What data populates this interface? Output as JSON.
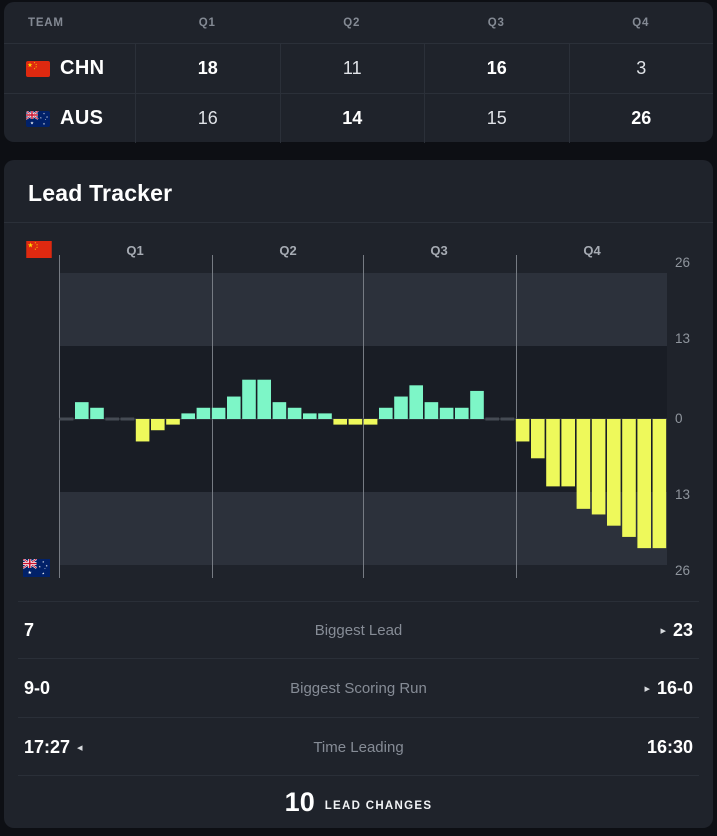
{
  "score_table": {
    "header": {
      "team": "TEAM",
      "quarters": [
        "Q1",
        "Q2",
        "Q3",
        "Q4"
      ]
    },
    "rows": [
      {
        "team": "CHN",
        "flag_icon": "china-flag-icon",
        "cells": [
          {
            "value": "18",
            "win": true
          },
          {
            "value": "11",
            "win": false
          },
          {
            "value": "16",
            "win": true
          },
          {
            "value": "3",
            "win": false
          }
        ]
      },
      {
        "team": "AUS",
        "flag_icon": "australia-flag-icon",
        "cells": [
          {
            "value": "16",
            "win": false
          },
          {
            "value": "14",
            "win": true
          },
          {
            "value": "15",
            "win": false
          },
          {
            "value": "26",
            "win": true
          }
        ]
      }
    ]
  },
  "lead_tracker": {
    "title": "Lead Tracker",
    "arrow_glyphs": {
      "home": "◂",
      "away": "▸"
    },
    "stats": [
      {
        "label": "Biggest Lead",
        "home": "7",
        "away": "23",
        "leader": "away"
      },
      {
        "label": "Biggest Scoring Run",
        "home": "9-0",
        "away": "16-0",
        "leader": "away"
      },
      {
        "label": "Time Leading",
        "home": "17:27",
        "away": "16:30",
        "leader": "home"
      }
    ],
    "lead_changes": {
      "value": "10",
      "label": "LEAD CHANGES"
    }
  },
  "chart_data": {
    "type": "bar",
    "title": "Lead Tracker",
    "x_axis_quarters": [
      "Q1",
      "Q2",
      "Q3",
      "Q4"
    ],
    "y_ticks": [
      26,
      13,
      0,
      13,
      26
    ],
    "ylim": [
      -26,
      26
    ],
    "positive_series": "CHN lead",
    "negative_series": "AUS lead",
    "colors": {
      "chn_positive": "#7df6c7",
      "aus_negative": "#eef95b"
    },
    "lead_by_minute": [
      0,
      3,
      2,
      0,
      0,
      -4,
      -2,
      -1,
      1,
      2,
      2,
      4,
      7,
      7,
      3,
      2,
      1,
      1,
      -1,
      -1,
      -1,
      2,
      4,
      6,
      3,
      2,
      2,
      5,
      0,
      0,
      -4,
      -7,
      -12,
      -12,
      -16,
      -17,
      -19,
      -21,
      -23,
      -23
    ]
  }
}
